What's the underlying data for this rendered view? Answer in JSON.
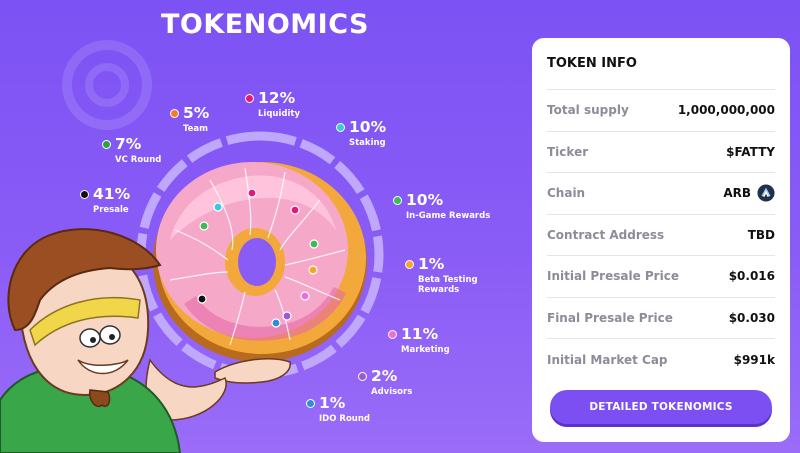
{
  "header": {
    "title": "TOKENOMICS"
  },
  "allocations": [
    {
      "percent": "41%",
      "label": "Presale",
      "color": "#111111"
    },
    {
      "percent": "7%",
      "label": "VC Round",
      "color": "#2ea043"
    },
    {
      "percent": "5%",
      "label": "Team",
      "color": "#f57c1f"
    },
    {
      "percent": "12%",
      "label": "Liquidity",
      "color": "#e0197a"
    },
    {
      "percent": "10%",
      "label": "Staking",
      "color": "#35c9e8"
    },
    {
      "percent": "10%",
      "label": "In-Game Rewards",
      "color": "#3dbb5a"
    },
    {
      "percent": "1%",
      "label": "Beta Testing Rewards",
      "label_line1": "Beta Testing",
      "label_line2": "Rewards",
      "color": "#f5a623"
    },
    {
      "percent": "11%",
      "label": "Marketing",
      "color": "#f06be0"
    },
    {
      "percent": "2%",
      "label": "Advisors",
      "color": "#9b59d9"
    },
    {
      "percent": "1%",
      "label": "IDO Round",
      "color": "#2a8fd6"
    }
  ],
  "token_info": {
    "title": "TOKEN INFO",
    "rows": [
      {
        "label": "Total supply",
        "value": "1,000,000,000"
      },
      {
        "label": "Ticker",
        "value": "$FATTY"
      },
      {
        "label": "Chain",
        "value": "ARB",
        "icon": "arbitrum-icon"
      },
      {
        "label": "Contract Address",
        "value": "TBD"
      },
      {
        "label": "Initial Presale Price",
        "value": "$0.016"
      },
      {
        "label": "Final Presale Price",
        "value": "$0.030"
      },
      {
        "label": "Initial Market Cap",
        "value": "$991k"
      }
    ],
    "button_label": "DETAILED TOKENOMICS"
  }
}
